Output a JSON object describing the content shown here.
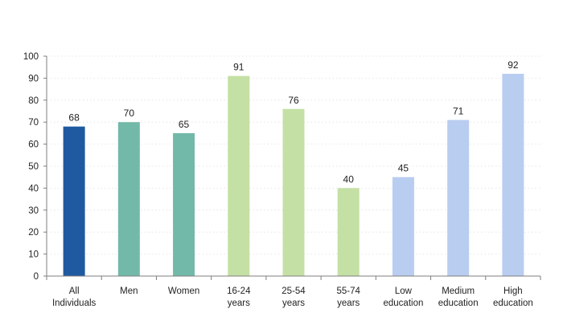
{
  "chart_data": {
    "type": "bar",
    "title": "",
    "xlabel": "",
    "ylabel": "",
    "ylim": [
      0,
      100
    ],
    "yticks": [
      0,
      10,
      20,
      30,
      40,
      50,
      60,
      70,
      80,
      90,
      100
    ],
    "grid": true,
    "categories": [
      [
        "All",
        "Individuals"
      ],
      [
        "Men"
      ],
      [
        "Women"
      ],
      [
        "16-24",
        "years"
      ],
      [
        "25-54",
        "years"
      ],
      [
        "55-74",
        "years"
      ],
      [
        "Low",
        "education"
      ],
      [
        "Medium",
        "education"
      ],
      [
        "High",
        "education"
      ]
    ],
    "values": [
      68,
      70,
      65,
      91,
      76,
      40,
      45,
      71,
      92
    ],
    "colors": [
      "#1f5aa0",
      "#72b9a9",
      "#72b9a9",
      "#c4e0a5",
      "#c4e0a5",
      "#c4e0a5",
      "#b9cdf0",
      "#b9cdf0",
      "#b9cdf0"
    ],
    "value_labels": [
      "68",
      "70",
      "65",
      "91",
      "76",
      "40",
      "45",
      "71",
      "92"
    ]
  }
}
